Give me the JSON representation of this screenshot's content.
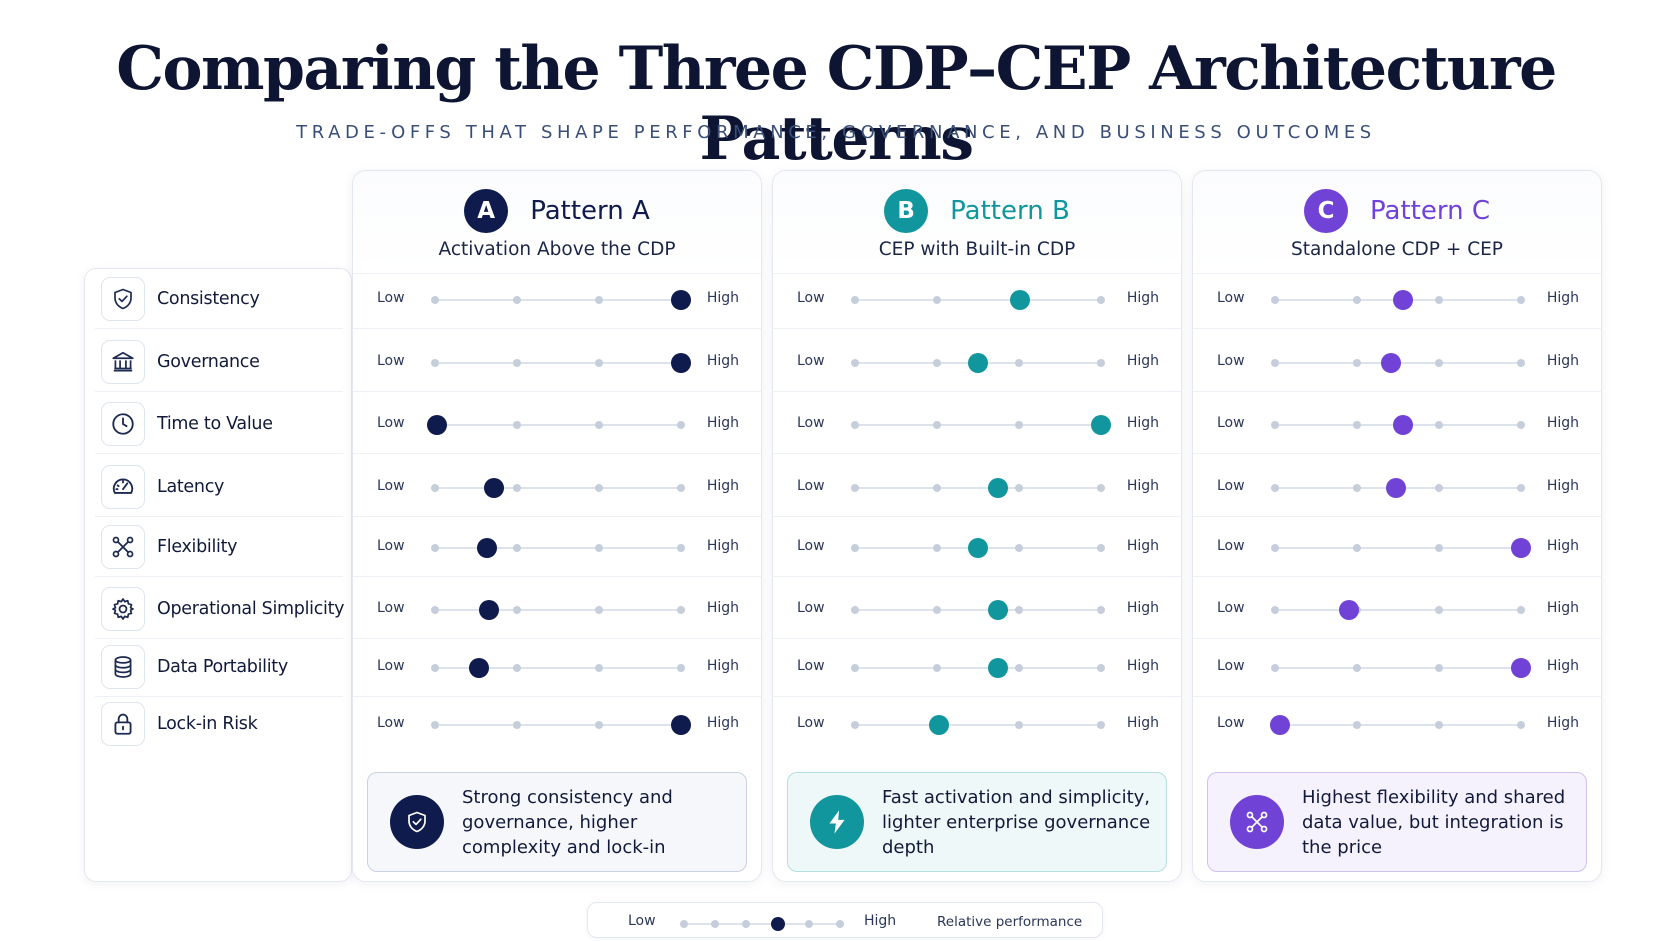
{
  "title": "Comparing the Three CDP–CEP Architecture Patterns",
  "subtitle": "TRADE-OFFS THAT SHAPE PERFORMANCE, GOVERNANCE, AND BUSINESS OUTCOMES",
  "scale": {
    "low_label": "Low",
    "high_label": "High"
  },
  "criteria": [
    {
      "label": "Consistency",
      "icon": "shield-check-icon"
    },
    {
      "label": "Governance",
      "icon": "bank-building-icon"
    },
    {
      "label": "Time to Value",
      "icon": "clock-icon"
    },
    {
      "label": "Latency",
      "icon": "speedometer-icon"
    },
    {
      "label": "Flexibility",
      "icon": "network-nodes-icon"
    },
    {
      "label": "Operational Simplicity",
      "icon": "gear-icon"
    },
    {
      "label": "Data Portability",
      "icon": "database-icon"
    },
    {
      "label": "Lock-in Risk",
      "icon": "lock-icon"
    }
  ],
  "patterns": [
    {
      "badge": "A",
      "name": "Pattern A",
      "subtitle": "Activation Above the CDP",
      "color": "#0f1b4d",
      "summary": "Strong consistency and governance, higher complexity and lock-in",
      "summary_icon": "shield-check-icon",
      "summary_bg": "#f5f7fb",
      "summary_border": "#c9d2e2",
      "scores": [
        1.0,
        1.0,
        0.01,
        0.24,
        0.21,
        0.22,
        0.18,
        1.0
      ]
    },
    {
      "badge": "B",
      "name": "Pattern B",
      "subtitle": "CEP with Built-in CDP",
      "color": "#10969c",
      "summary": "Fast activation and simplicity, lighter enterprise governance depth",
      "summary_icon": "lightning-bolt-icon",
      "summary_bg": "#eef8f8",
      "summary_border": "#b5dfe0",
      "scores": [
        0.67,
        0.5,
        1.0,
        0.58,
        0.5,
        0.58,
        0.58,
        0.34
      ]
    },
    {
      "badge": "C",
      "name": "Pattern C",
      "subtitle": "Standalone CDP + CEP",
      "color": "#7042d6",
      "summary": "Highest flexibility and shared data value, but integration is the price",
      "summary_icon": "network-nodes-icon",
      "summary_bg": "#f5f1fd",
      "summary_border": "#cfc1f1",
      "scores": [
        0.52,
        0.47,
        0.52,
        0.49,
        1.0,
        0.3,
        1.0,
        0.02
      ]
    }
  ],
  "legend": {
    "low": "Low",
    "high": "High",
    "caption": "Relative performance",
    "example_score": 0.6
  }
}
